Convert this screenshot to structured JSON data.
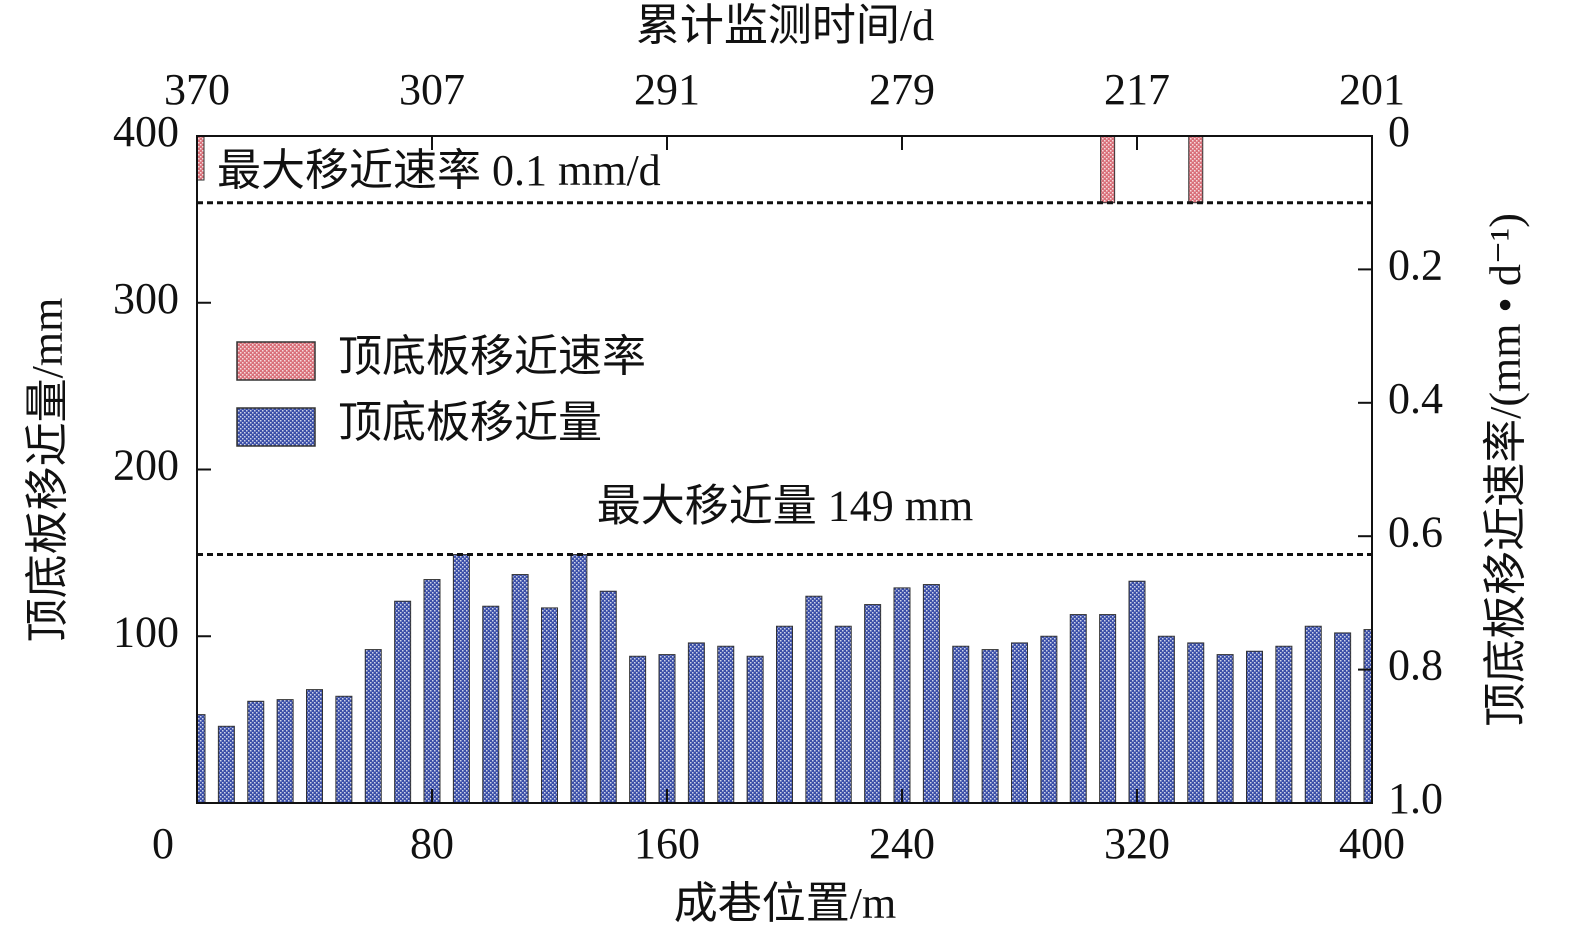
{
  "chart_data": {
    "type": "bar",
    "xlabel": "成巷位置/m",
    "x2label": "累计监测时间/d",
    "ylabel": "顶底板移近量/mm",
    "y2label": "顶底板移近速率/(mm • d⁻¹)",
    "xlim": [
      0,
      400
    ],
    "xticks": [
      0,
      80,
      160,
      240,
      320,
      400
    ],
    "x2ticks": [
      {
        "value": 0,
        "label": "370"
      },
      {
        "value": 80,
        "label": "307"
      },
      {
        "value": 160,
        "label": "291"
      },
      {
        "value": 240,
        "label": "279"
      },
      {
        "value": 320,
        "label": "217"
      },
      {
        "value": 400,
        "label": "201"
      }
    ],
    "ylim": [
      0,
      400
    ],
    "yticks": [
      100,
      200,
      300,
      400
    ],
    "y2lim": [
      0,
      1.0
    ],
    "y2_inverted": true,
    "y2ticks": [
      0,
      0.2,
      0.4,
      0.6,
      0.8,
      {
        "value": 1.0,
        "label": "1.0"
      }
    ],
    "legend": "left",
    "series": [
      {
        "name": "顶底板移近速率",
        "color": "#d9707a",
        "axis": "y2",
        "x": [
          0,
          310,
          340
        ],
        "values": [
          0.066,
          0.1,
          0.1
        ]
      },
      {
        "name": "顶底板移近量",
        "color": "#3b4fa8",
        "x": [
          0,
          10,
          20,
          30,
          40,
          50,
          60,
          70,
          80,
          90,
          100,
          110,
          120,
          130,
          140,
          150,
          160,
          170,
          180,
          190,
          200,
          210,
          220,
          230,
          240,
          250,
          260,
          270,
          280,
          290,
          300,
          310,
          320,
          330,
          340,
          350,
          360,
          370,
          380,
          390,
          400
        ],
        "values": [
          53,
          46,
          61,
          62,
          68,
          64,
          92,
          121,
          134,
          149,
          118,
          137,
          117,
          149,
          127,
          88,
          89,
          96,
          94,
          88,
          106,
          124,
          106,
          119,
          129,
          131,
          94,
          92,
          96,
          100,
          113,
          113,
          133,
          100,
          96,
          89,
          91,
          94,
          106,
          102,
          104
        ]
      }
    ],
    "annotations": [
      {
        "text": "最大移近速率 0.1 mm/d",
        "value": 0.1,
        "axis": "y2"
      },
      {
        "text": "最大移近量 149 mm",
        "value": 149,
        "axis": "y"
      }
    ]
  }
}
